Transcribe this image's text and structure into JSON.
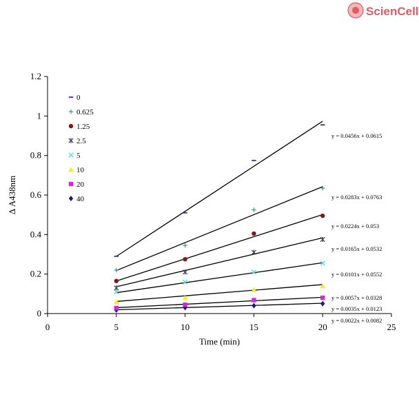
{
  "logo": {
    "text": "ScienCell",
    "color": "#e05b63"
  },
  "chart_data": {
    "type": "scatter",
    "title": "",
    "xlabel": "Time (min)",
    "ylabel": "Δ A438nm",
    "xlim": [
      0,
      25
    ],
    "ylim": [
      0,
      1.2
    ],
    "xticks": [
      0,
      5,
      10,
      15,
      20,
      25
    ],
    "yticks": [
      0,
      0.2,
      0.4,
      0.6,
      0.8,
      1,
      1.2
    ],
    "xtick_labels": [
      "0",
      "5",
      "10",
      "15",
      "20",
      "25"
    ],
    "ytick_labels": [
      "0",
      "0.2",
      "0.4",
      "0.6",
      "0.8",
      "1",
      "1.2"
    ],
    "grid": false,
    "legend_position": "top-left",
    "x": [
      5,
      10,
      15,
      20
    ],
    "series": [
      {
        "name": "40",
        "marker": "diamond",
        "color": "#1a1a7a",
        "values": [
          0.018,
          0.03,
          0.04,
          0.05
        ],
        "slope": 0.0022,
        "intercept": 0.0082,
        "equation": "y = 0.0022x + 0.0082"
      },
      {
        "name": "20",
        "marker": "square",
        "color": "#e020e0",
        "values": [
          0.028,
          0.045,
          0.068,
          0.08
        ],
        "slope": 0.0035,
        "intercept": 0.0123,
        "equation": "y = 0.0035x + 0.0123"
      },
      {
        "name": "10",
        "marker": "triangle",
        "color": "#f0f020",
        "values": [
          0.06,
          0.08,
          0.12,
          0.14
        ],
        "slope": 0.0057,
        "intercept": 0.0328,
        "equation": "y = 0.0057x + 0.0328"
      },
      {
        "name": "5",
        "marker": "x",
        "color": "#40e0e0",
        "values": [
          0.11,
          0.16,
          0.21,
          0.255
        ],
        "slope": 0.0101,
        "intercept": 0.0552,
        "equation": "y = 0.0101x + 0.0552"
      },
      {
        "name": "2.5",
        "marker": "star",
        "color": "#404060",
        "values": [
          0.13,
          0.21,
          0.31,
          0.375
        ],
        "slope": 0.0165,
        "intercept": 0.0532,
        "equation": "y = 0.0165x + 0.0532"
      },
      {
        "name": "1.25",
        "marker": "circle",
        "color": "#801818",
        "values": [
          0.165,
          0.275,
          0.405,
          0.495
        ],
        "slope": 0.0224,
        "intercept": 0.053,
        "equation": "y = 0.0224x + 0.053"
      },
      {
        "name": "0.625",
        "marker": "plus",
        "color": "#40a080",
        "values": [
          0.22,
          0.345,
          0.525,
          0.635
        ],
        "slope": 0.0283,
        "intercept": 0.0763,
        "equation": "y = 0.0283x + 0.0763"
      },
      {
        "name": "0",
        "marker": "dash",
        "color": "#303090",
        "values": [
          0.29,
          0.51,
          0.775,
          0.955
        ],
        "slope": 0.0456,
        "intercept": 0.0615,
        "equation": "y = 0.0456x + 0.0615"
      }
    ]
  }
}
